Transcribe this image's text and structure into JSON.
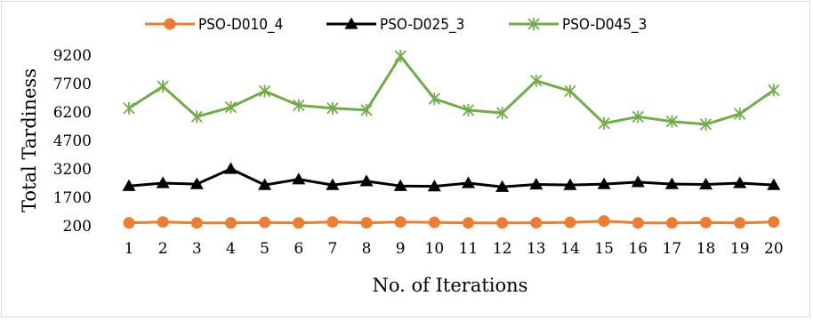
{
  "chart_data": {
    "type": "line",
    "title": "",
    "xlabel": "No. of Iterations",
    "ylabel": "Total Tardiness",
    "x": [
      1,
      2,
      3,
      4,
      5,
      6,
      7,
      8,
      9,
      10,
      11,
      12,
      13,
      14,
      15,
      16,
      17,
      18,
      19,
      20
    ],
    "ylim": [
      200,
      9200
    ],
    "yticks": [
      200,
      1700,
      3200,
      4700,
      6200,
      7700,
      9200
    ],
    "grid": false,
    "legend_position": "top",
    "series": [
      {
        "name": "PSO-D010_4",
        "color": "#ed7d31",
        "marker": "circle",
        "values": [
          350,
          400,
          350,
          350,
          380,
          350,
          400,
          360,
          400,
          380,
          350,
          350,
          360,
          380,
          450,
          350,
          350,
          370,
          350,
          400
        ]
      },
      {
        "name": "PSO-D025_3",
        "color": "#000000",
        "marker": "triangle",
        "values": [
          2300,
          2450,
          2400,
          3200,
          2350,
          2650,
          2350,
          2550,
          2300,
          2280,
          2450,
          2250,
          2380,
          2350,
          2400,
          2500,
          2400,
          2380,
          2450,
          2350
        ]
      },
      {
        "name": "PSO-D045_3",
        "color": "#70ad47",
        "marker": "asterisk",
        "values": [
          6400,
          7550,
          5950,
          6450,
          7300,
          6550,
          6400,
          6300,
          9150,
          6900,
          6300,
          6150,
          7850,
          7300,
          5600,
          5950,
          5700,
          5550,
          6100,
          7350
        ]
      }
    ]
  }
}
